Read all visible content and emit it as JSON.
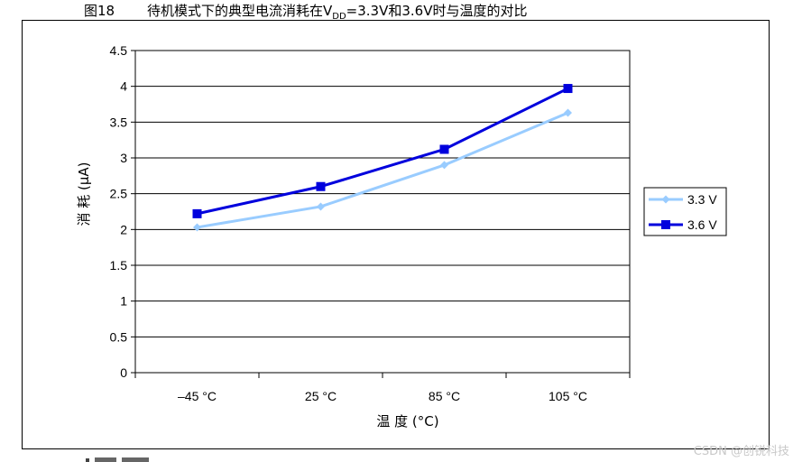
{
  "figure": {
    "number": "图18",
    "title_prefix": "待机模式下的典型电流消耗在V",
    "title_subscript": "DD",
    "title_suffix": "=3.3V和3.6V时与温度的对比"
  },
  "watermark": "CSDN @创锐科技",
  "chart_data": {
    "type": "line",
    "categories": [
      "–45 °C",
      "25 °C",
      "85 °C",
      "105 °C"
    ],
    "series": [
      {
        "name": "3.3 V",
        "values": [
          2.03,
          2.32,
          2.9,
          3.63
        ],
        "color": "#99ccff",
        "marker": "diamond"
      },
      {
        "name": "3.6 V",
        "values": [
          2.22,
          2.6,
          3.12,
          3.97
        ],
        "color": "#0000dd",
        "marker": "square"
      }
    ],
    "ylim": [
      0,
      4.5
    ],
    "yticks": [
      0,
      0.5,
      1,
      1.5,
      2,
      2.5,
      3,
      3.5,
      4,
      4.5
    ],
    "ylabel": "消 耗 (µA)",
    "xlabel": "温 度 (°C)",
    "grid": true,
    "legend_position": "right"
  }
}
